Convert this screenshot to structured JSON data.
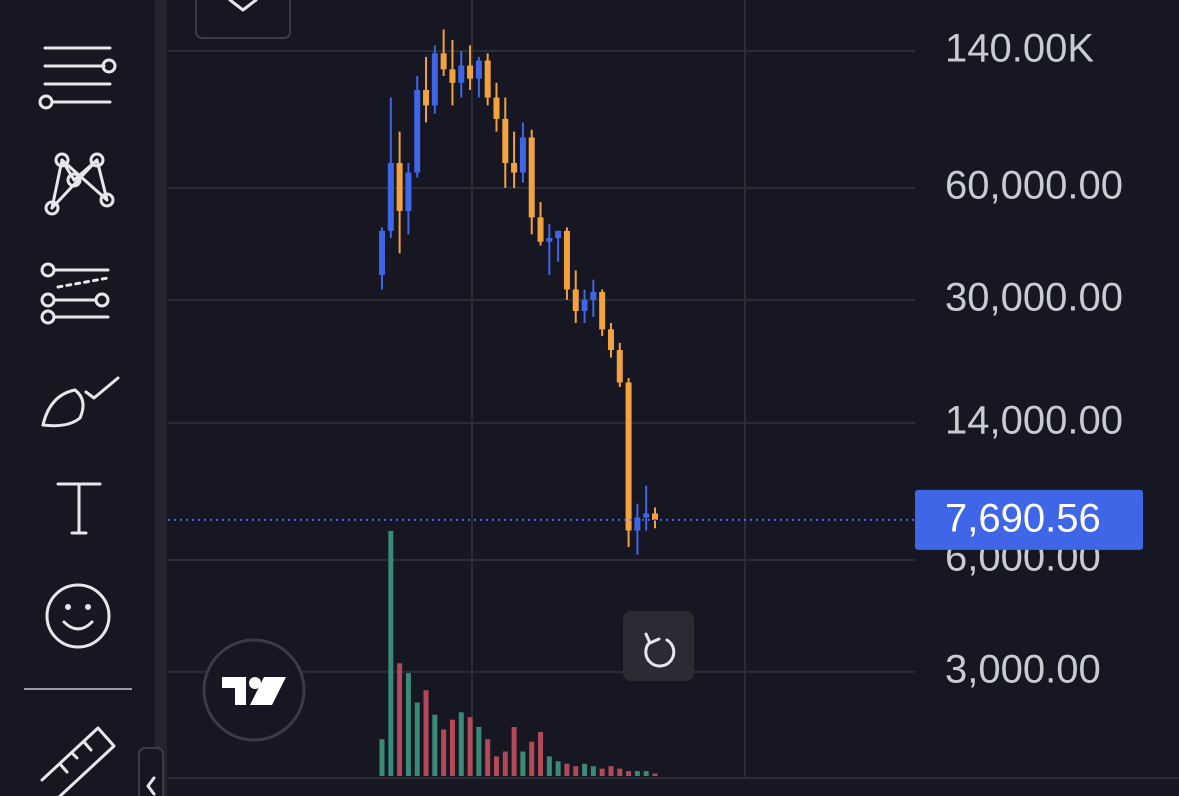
{
  "chart_data": {
    "type": "candlestick",
    "log_scale": true,
    "grid": true,
    "up_color": "#3f66e6",
    "down_color": "#f2a23f",
    "volume_up_color": "#3a8a78",
    "volume_down_color": "#b14a56",
    "ylim": [
      1556,
      192000
    ],
    "yticks": [
      {
        "value": 140000,
        "label": "140.00K"
      },
      {
        "value": 60000,
        "label": "60,000.00"
      },
      {
        "value": 30000,
        "label": "30,000.00"
      },
      {
        "value": 14000,
        "label": "14,000.00"
      },
      {
        "value": 6000,
        "label": "6,000.00"
      },
      {
        "value": 3000,
        "label": "3,000.00"
      }
    ],
    "last_price": {
      "value": 7690.56,
      "label": "7,690.56"
    },
    "open": [
      35000,
      46000,
      70000,
      52000,
      66000,
      110000,
      100000,
      138000,
      125000,
      115000,
      128000,
      118000,
      132000,
      105000,
      92000,
      70000,
      66000,
      82000,
      50000,
      43000,
      44000,
      46000,
      32000,
      28000,
      30000,
      31500,
      25000,
      22000,
      18000,
      7200,
      7800,
      8000
    ],
    "high": [
      47000,
      105000,
      85000,
      70000,
      120000,
      135000,
      145000,
      160000,
      150000,
      140000,
      145000,
      135000,
      138000,
      115000,
      105000,
      85000,
      90000,
      86000,
      55000,
      48000,
      46000,
      47000,
      36000,
      32000,
      34000,
      32000,
      26000,
      23000,
      18500,
      8500,
      9500,
      8300
    ],
    "low": [
      32000,
      44000,
      40000,
      45000,
      64000,
      90000,
      95000,
      120000,
      100000,
      105000,
      110000,
      105000,
      100000,
      85000,
      60000,
      60000,
      62000,
      45000,
      42000,
      35000,
      38000,
      30000,
      26000,
      26000,
      27000,
      24000,
      21000,
      17500,
      6500,
      6200,
      7200,
      7300
    ],
    "close": [
      46000,
      70000,
      52000,
      66000,
      110000,
      100000,
      138000,
      125000,
      115000,
      128000,
      118000,
      132000,
      105000,
      92000,
      70000,
      66000,
      82000,
      50000,
      43000,
      44000,
      46000,
      32000,
      28000,
      30000,
      31500,
      25000,
      22000,
      18000,
      7200,
      7800,
      8000,
      7690.56
    ],
    "volume_ylim": [
      0,
      100
    ],
    "volume": [
      15,
      100,
      46,
      42,
      30,
      35,
      25,
      19,
      23,
      26,
      24,
      20,
      15,
      8,
      10,
      20,
      10,
      14,
      18,
      8,
      6,
      5,
      4,
      5,
      4,
      3,
      4,
      3,
      2,
      2,
      2,
      1
    ]
  }
}
